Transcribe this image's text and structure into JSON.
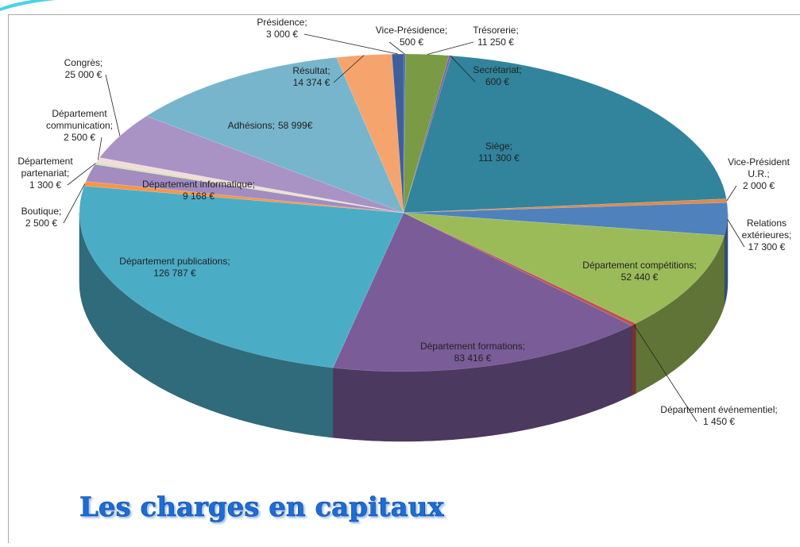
{
  "chart_data": {
    "type": "pie3d",
    "title": "Les charges en capitaux",
    "categories": [
      "Vice-Présidence;",
      "Trésorerie;",
      "Secrétariat;",
      "Siège;",
      "Vice-Président U.R.;",
      "Relations extérieures;",
      "Département compétitions;",
      "Département événementiel;",
      "Département formations;",
      "Département publications;",
      "Boutique;",
      "Département informatique;",
      "Département partenariat;",
      "Département communication;",
      "Congrès;",
      "Adhésions;",
      "Résultat;",
      "Présidence;"
    ],
    "values": [
      500,
      11250,
      600,
      111300,
      2000,
      17300,
      52440,
      1450,
      83416,
      126787,
      2500,
      9168,
      1300,
      2500,
      25000,
      58999,
      14374,
      3000
    ],
    "value_labels": [
      "500 €",
      "11 250 €",
      "600 €",
      "111 300 €",
      "2 000 €",
      "17 300 €",
      "52 440 €",
      "1 450 €",
      "83 416 €",
      "126 787 €",
      "2 500 €",
      "9 168 €",
      "1 300 €",
      "2 500 €",
      "25 000 €",
      "58 999€",
      "14 374 €",
      "3 000 €"
    ],
    "colors": [
      "#4a6fa5",
      "#7a9a45",
      "#8064a2",
      "#31849b",
      "#e0894a",
      "#4f81bd",
      "#9bbb59",
      "#c0504d",
      "#7a5c99",
      "#4bacc6",
      "#f79646",
      "#a28cc0",
      "#d7e4bd",
      "#f2dcdb",
      "#a993c4",
      "#77b5cc",
      "#f5a46e",
      "#3f5f9a"
    ]
  }
}
